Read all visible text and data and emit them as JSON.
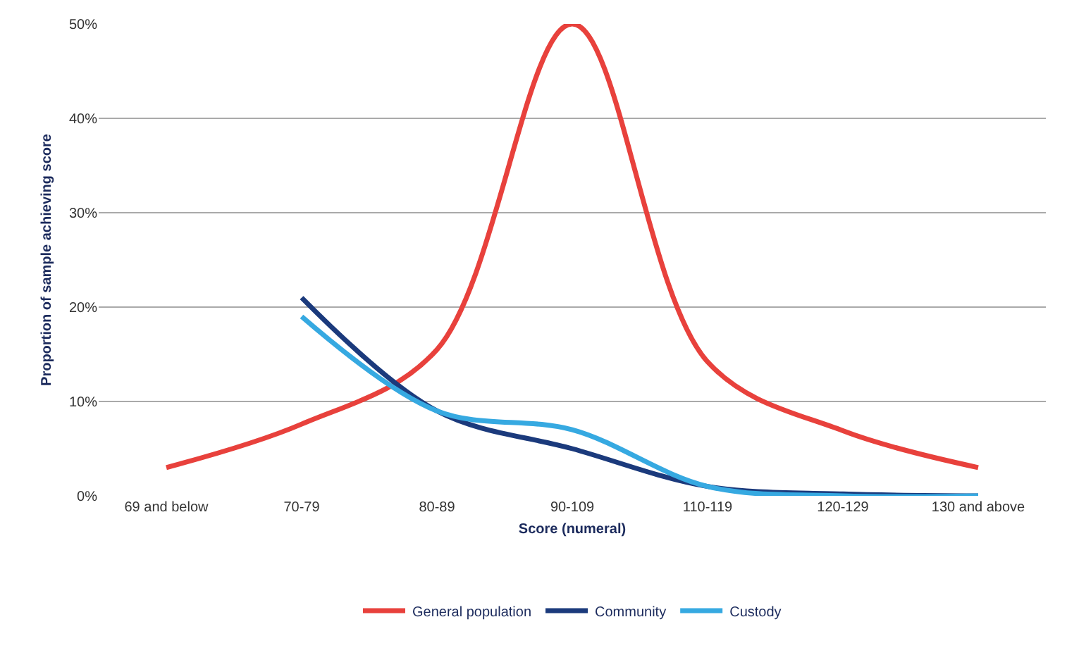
{
  "chart_data": {
    "type": "line",
    "xlabel": "Score (numeral)",
    "ylabel": "Proportion of sample achieving score",
    "categories": [
      "69 and below",
      "70-79",
      "80-89",
      "90-109",
      "110-119",
      "120-129",
      "130 and above"
    ],
    "series": [
      {
        "name": "General population",
        "color": "#e8413c",
        "values": [
          3,
          7.6,
          15.5,
          50,
          14.2,
          6.9,
          3
        ]
      },
      {
        "name": "Community",
        "color": "#1b3a7c",
        "values": [
          null,
          21,
          9,
          5,
          1,
          0.2,
          0
        ]
      },
      {
        "name": "Custody",
        "color": "#36a9e1",
        "values": [
          null,
          19,
          9,
          7,
          1,
          0,
          0
        ]
      }
    ],
    "ylim": [
      0,
      50
    ],
    "yticks": [
      {
        "value": 0,
        "label": "0%"
      },
      {
        "value": 10,
        "label": "10%"
      },
      {
        "value": 20,
        "label": "20%"
      },
      {
        "value": 30,
        "label": "30%"
      },
      {
        "value": 40,
        "label": "40%"
      },
      {
        "value": 50,
        "label": "50%"
      }
    ],
    "grid": "y",
    "legend": "bottom",
    "marker": "none",
    "line_style": "solid"
  }
}
